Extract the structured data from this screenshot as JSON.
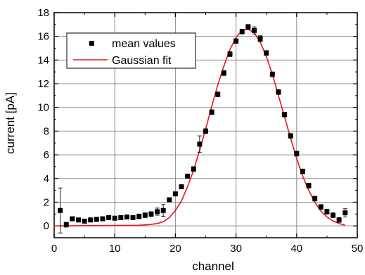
{
  "chart_data": {
    "type": "scatter",
    "title": "",
    "xlabel": "channel",
    "ylabel": "current [pA]",
    "xlim": [
      0,
      50
    ],
    "ylim": [
      -1,
      18
    ],
    "x_ticks": [
      "0",
      "10",
      "20",
      "30",
      "40",
      "50"
    ],
    "y_ticks": [
      "0",
      "2",
      "4",
      "6",
      "8",
      "10",
      "12",
      "14",
      "16",
      "18"
    ],
    "grid": true,
    "legend_position": "top-left",
    "series": [
      {
        "name": "mean values",
        "kind": "points",
        "color": "#000000",
        "marker": "square",
        "x": [
          1,
          2,
          3,
          4,
          5,
          6,
          7,
          8,
          9,
          10,
          11,
          12,
          13,
          14,
          15,
          16,
          17,
          18,
          19,
          20,
          21,
          22,
          23,
          24,
          25,
          26,
          27,
          28,
          29,
          30,
          31,
          32,
          33,
          34,
          35,
          36,
          37,
          38,
          39,
          40,
          41,
          42,
          43,
          44,
          45,
          46,
          47,
          48
        ],
        "y": [
          1.3,
          0.1,
          0.6,
          0.5,
          0.4,
          0.5,
          0.55,
          0.6,
          0.7,
          0.65,
          0.7,
          0.75,
          0.7,
          0.8,
          0.9,
          1.0,
          1.2,
          1.3,
          2.2,
          2.7,
          3.3,
          4.2,
          4.8,
          6.9,
          8.0,
          9.6,
          11.1,
          12.9,
          14.5,
          15.6,
          16.4,
          16.8,
          16.5,
          15.8,
          14.6,
          12.8,
          11.3,
          9.4,
          7.6,
          6.1,
          4.6,
          3.4,
          2.3,
          1.6,
          1.2,
          0.9,
          0.5,
          1.1
        ],
        "error": [
          1.9,
          0.2,
          0.15,
          0.15,
          0.15,
          0.15,
          0.15,
          0.15,
          0.15,
          0.15,
          0.15,
          0.15,
          0.15,
          0.2,
          0.2,
          0.2,
          0.3,
          0.5,
          0.15,
          0.15,
          0.15,
          0.15,
          0.2,
          0.7,
          0.2,
          0.2,
          0.2,
          0.2,
          0.2,
          0.2,
          0.2,
          0.2,
          0.3,
          0.25,
          0.2,
          0.2,
          0.2,
          0.2,
          0.2,
          0.2,
          0.2,
          0.2,
          0.2,
          0.2,
          0.2,
          0.2,
          0.2,
          0.35
        ]
      },
      {
        "name": "Gaussian fit",
        "kind": "line",
        "color": "#e8141e",
        "x": [
          0,
          14,
          16,
          17,
          18,
          19,
          20,
          21,
          22,
          23,
          24,
          25,
          26,
          27,
          28,
          29,
          30,
          31,
          32,
          33,
          34,
          35,
          36,
          37,
          38,
          39,
          40,
          41,
          42,
          43,
          44,
          45,
          46,
          47,
          48
        ],
        "y": [
          0,
          0.05,
          0.12,
          0.2,
          0.35,
          0.7,
          1.3,
          2.1,
          3.3,
          4.7,
          6.4,
          8.2,
          10.1,
          11.9,
          13.5,
          14.9,
          15.9,
          16.5,
          16.6,
          16.3,
          15.5,
          14.3,
          12.8,
          11.0,
          9.2,
          7.4,
          5.7,
          4.2,
          3.0,
          2.0,
          1.25,
          0.75,
          0.4,
          0.2,
          0.05
        ]
      }
    ]
  }
}
